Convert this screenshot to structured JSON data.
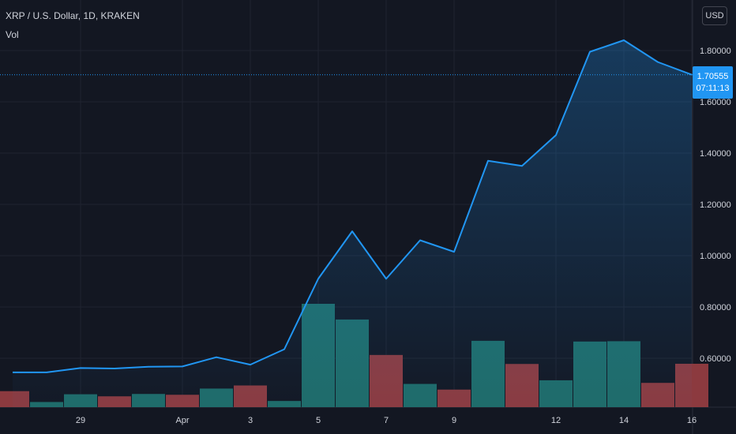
{
  "header": {
    "title": "XRP / U.S. Dollar, 1D, KRAKEN",
    "volume_label": "Vol"
  },
  "currency_button": "USD",
  "price_tag": {
    "price": "1.70555",
    "countdown": "07:11:13",
    "color": "#2196f3"
  },
  "colors": {
    "background": "#131722",
    "line": "#2196f3",
    "volume_up": "#1f6b68",
    "volume_down": "#8c3a3f",
    "grid": "#1f2330"
  },
  "chart_data": {
    "type": "line",
    "x_tick_labels": [
      {
        "label": "29",
        "index": 2
      },
      {
        "label": "Apr",
        "index": 5
      },
      {
        "label": "3",
        "index": 7
      },
      {
        "label": "5",
        "index": 9
      },
      {
        "label": "7",
        "index": 11
      },
      {
        "label": "9",
        "index": 13
      },
      {
        "label": "12",
        "index": 16
      },
      {
        "label": "14",
        "index": 18
      },
      {
        "label": "16",
        "index": 20
      }
    ],
    "y_ticks": [
      0.6,
      0.8,
      1.0,
      1.2,
      1.4,
      1.6,
      1.8
    ],
    "y_tick_labels": [
      "0.60000",
      "0.80000",
      "1.00000",
      "1.20000",
      "1.40000",
      "1.60000",
      "1.80000"
    ],
    "ylim": [
      0.42,
      1.95
    ],
    "grid": true,
    "price": [
      0.545,
      0.545,
      0.562,
      0.56,
      0.567,
      0.568,
      0.604,
      0.575,
      0.635,
      0.91,
      1.095,
      0.91,
      1.06,
      1.015,
      1.37,
      1.35,
      1.47,
      1.795,
      1.84,
      1.755,
      1.70555
    ],
    "volume_relative": [
      0.155,
      0.05,
      0.125,
      0.105,
      0.128,
      0.12,
      0.18,
      0.21,
      0.06,
      1.0,
      0.848,
      0.505,
      0.225,
      0.17,
      0.642,
      0.418,
      0.26,
      0.635,
      0.638,
      0.235,
      0.42
    ],
    "volume_direction": [
      "down",
      "up",
      "up",
      "down",
      "up",
      "down",
      "up",
      "down",
      "up",
      "up",
      "up",
      "down",
      "up",
      "down",
      "up",
      "down",
      "up",
      "up",
      "up",
      "down",
      "down"
    ]
  }
}
